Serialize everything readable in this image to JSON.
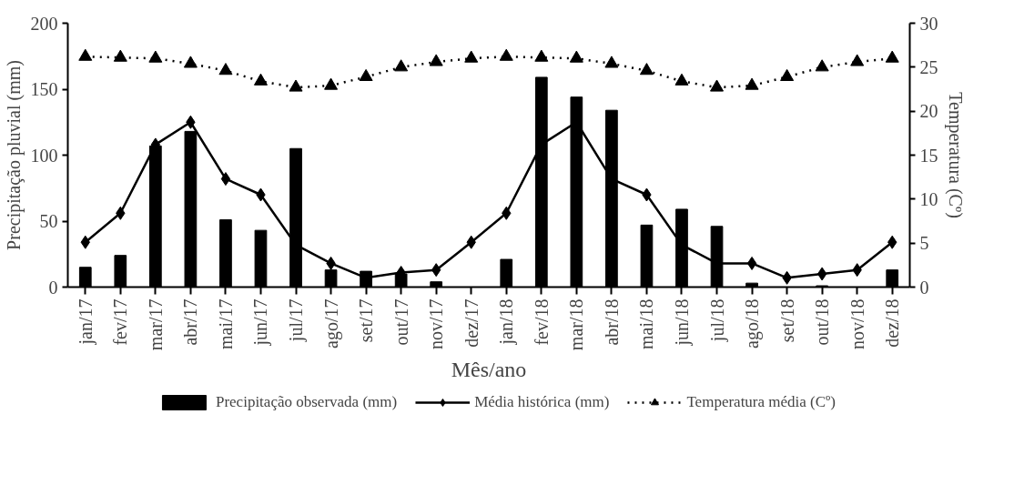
{
  "chart_data": {
    "type": "bar",
    "xlabel": "Mês/ano",
    "ylabel": "Precipitação pluvial (mm)",
    "y2label": "Temperatura (Cº)",
    "categories": [
      "jan/17",
      "fev/17",
      "mar/17",
      "abr/17",
      "mai/17",
      "jun/17",
      "jul/17",
      "ago/17",
      "set/17",
      "out/17",
      "nov/17",
      "dez/17",
      "jan/18",
      "fev/18",
      "mar/18",
      "abr/18",
      "mai/18",
      "jun/18",
      "jul/18",
      "ago/18",
      "set/18",
      "out/18",
      "nov/18",
      "dez/18"
    ],
    "series": [
      {
        "name": "Precipitação observada (mm)",
        "color": "#000000",
        "values": [
          15,
          24,
          107,
          118,
          51,
          43,
          105,
          13,
          12,
          10,
          4,
          0,
          21,
          159,
          144,
          134,
          47,
          59,
          46,
          3,
          0,
          1,
          0,
          13
        ]
      },
      {
        "name": "Média histórica (mm)",
        "type": "line",
        "color": "#000000",
        "marker": "diamond",
        "line_style": "solid",
        "values": [
          34,
          56,
          108,
          125,
          82,
          70,
          32,
          18,
          7,
          11,
          13,
          34,
          56,
          108,
          125,
          82,
          70,
          32,
          18,
          18,
          7,
          10,
          13,
          34
        ]
      },
      {
        "name": "Temperatura média (Cº)",
        "type": "line",
        "axis": "y2",
        "color": "#000000",
        "marker": "triangle",
        "line_style": "dotted",
        "values": [
          26.2,
          26.1,
          26.0,
          25.4,
          24.6,
          23.4,
          22.7,
          22.9,
          23.9,
          25.0,
          25.6,
          26.0,
          26.2,
          26.1,
          26.0,
          25.4,
          24.6,
          23.4,
          22.7,
          22.9,
          23.9,
          25.0,
          25.6,
          26.0
        ]
      }
    ],
    "ylim": [
      0,
      200
    ],
    "yticks": [
      0,
      50,
      100,
      150,
      200
    ],
    "y2lim": [
      0,
      30
    ],
    "y2ticks": [
      0,
      5,
      10,
      15,
      20,
      25,
      30
    ],
    "grid": false,
    "legend": "bottom"
  }
}
